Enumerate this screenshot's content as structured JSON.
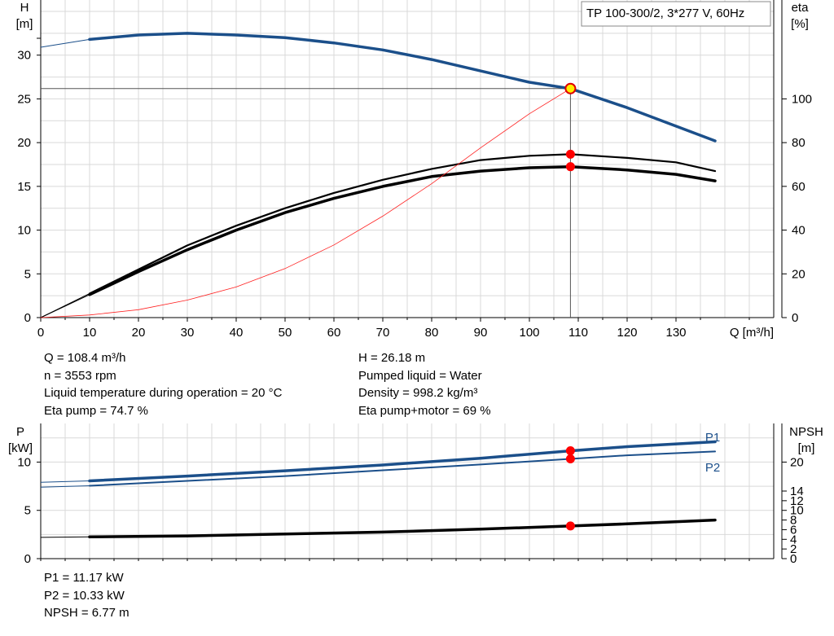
{
  "chart_data": [
    {
      "type": "line",
      "title": "TP 100-300/2, 3*277 V, 60Hz",
      "xlabel": "Q [m³/h]",
      "ylabel_left": [
        "H",
        "[m]"
      ],
      "ylabel_right": [
        "eta",
        "[%]"
      ],
      "xlim": [
        0,
        150
      ],
      "ylim_left": [
        0,
        35
      ],
      "ylim_right": [
        0,
        140
      ],
      "x_ticks": [
        "0",
        "10",
        "20",
        "30",
        "40",
        "50",
        "60",
        "70",
        "80",
        "90",
        "100",
        "110",
        "120",
        "130"
      ],
      "y_ticks_left": [
        "0",
        "5",
        "10",
        "15",
        "20",
        "25",
        "30"
      ],
      "y_ticks_right": [
        "0",
        "20",
        "40",
        "60",
        "80",
        "100"
      ],
      "grid": true,
      "series": [
        {
          "axis": "left",
          "color": "#1b4f8a",
          "x": [
            10,
            20,
            30,
            40,
            50,
            60,
            70,
            80,
            90,
            100,
            108.4,
            120,
            138
          ],
          "y": [
            31.8,
            32.3,
            32.5,
            32.3,
            32.0,
            31.4,
            30.6,
            29.5,
            28.2,
            26.9,
            26.18,
            24.0,
            20.2
          ]
        },
        {
          "axis": "right",
          "color": "#000000",
          "x": [
            10,
            20,
            30,
            40,
            50,
            60,
            70,
            80,
            90,
            100,
            108.4,
            120,
            130,
            138
          ],
          "y": [
            11,
            22,
            33,
            42,
            50,
            57,
            63,
            68,
            72,
            74,
            74.7,
            73,
            71,
            67
          ]
        },
        {
          "axis": "right",
          "color": "#000000",
          "x": [
            10,
            20,
            30,
            40,
            50,
            60,
            70,
            80,
            90,
            100,
            108.4,
            120,
            130,
            138
          ],
          "y": [
            10.5,
            21,
            31,
            40,
            48,
            54.5,
            60,
            64.5,
            67,
            68.5,
            69,
            67.5,
            65.5,
            62.5
          ]
        },
        {
          "axis": "left",
          "color": "#ff2020",
          "x": [
            0,
            10,
            20,
            30,
            40,
            50,
            60,
            70,
            80,
            90,
            100,
            108.4
          ],
          "y": [
            0,
            0.3,
            0.9,
            2.0,
            3.5,
            5.6,
            8.3,
            11.6,
            15.3,
            19.4,
            23.3,
            26.18
          ]
        }
      ],
      "operating_point": {
        "x": 108.4,
        "y": 26.18
      }
    },
    {
      "type": "line",
      "ylabel_left": [
        "P",
        "[kW]"
      ],
      "ylabel_right": [
        "NPSH",
        "[m]"
      ],
      "xlim": [
        0,
        150
      ],
      "ylim_left": [
        0,
        14
      ],
      "ylim_right": [
        0,
        28
      ],
      "y_ticks_left": [
        "0",
        "5",
        "10"
      ],
      "y_ticks_right": [
        "0",
        "2",
        "4",
        "6",
        "8",
        "10",
        "12",
        "14",
        "20"
      ],
      "grid": true,
      "series": [
        {
          "name": "P1",
          "axis": "left",
          "color": "#1b4f8a",
          "x": [
            0,
            10,
            30,
            50,
            70,
            90,
            108.4,
            120,
            138
          ],
          "y": [
            7.9,
            8.05,
            8.55,
            9.1,
            9.7,
            10.4,
            11.17,
            11.6,
            12.1
          ]
        },
        {
          "name": "P2",
          "axis": "left",
          "color": "#1b4f8a",
          "x": [
            0,
            10,
            30,
            50,
            70,
            90,
            108.4,
            120,
            138
          ],
          "y": [
            7.4,
            7.55,
            8.05,
            8.55,
            9.15,
            9.75,
            10.33,
            10.7,
            11.1
          ]
        },
        {
          "axis": "right",
          "color": "#000000",
          "x": [
            0,
            10,
            30,
            50,
            70,
            90,
            108.4,
            120,
            138
          ],
          "y": [
            4.4,
            4.5,
            4.7,
            5.1,
            5.5,
            6.1,
            6.77,
            7.2,
            8.0
          ]
        }
      ],
      "markers": [
        {
          "x": 108.4,
          "axis": "left",
          "y": 11.17
        },
        {
          "x": 108.4,
          "axis": "left",
          "y": 10.33
        },
        {
          "x": 108.4,
          "axis": "right",
          "y": 6.77
        }
      ]
    }
  ],
  "info_left": [
    "Q = 108.4 m³/h",
    "n = 3553 rpm",
    "Liquid temperature during operation = 20 °C",
    "Eta pump = 74.7 %"
  ],
  "info_right": [
    "H = 26.18 m",
    "Pumped liquid = Water",
    "Density = 998.2 kg/m³",
    "Eta pump+motor = 69 %"
  ],
  "info_bottom": [
    "P1 = 11.17 kW",
    "P2 = 10.33 kW",
    "NPSH = 6.77 m"
  ]
}
